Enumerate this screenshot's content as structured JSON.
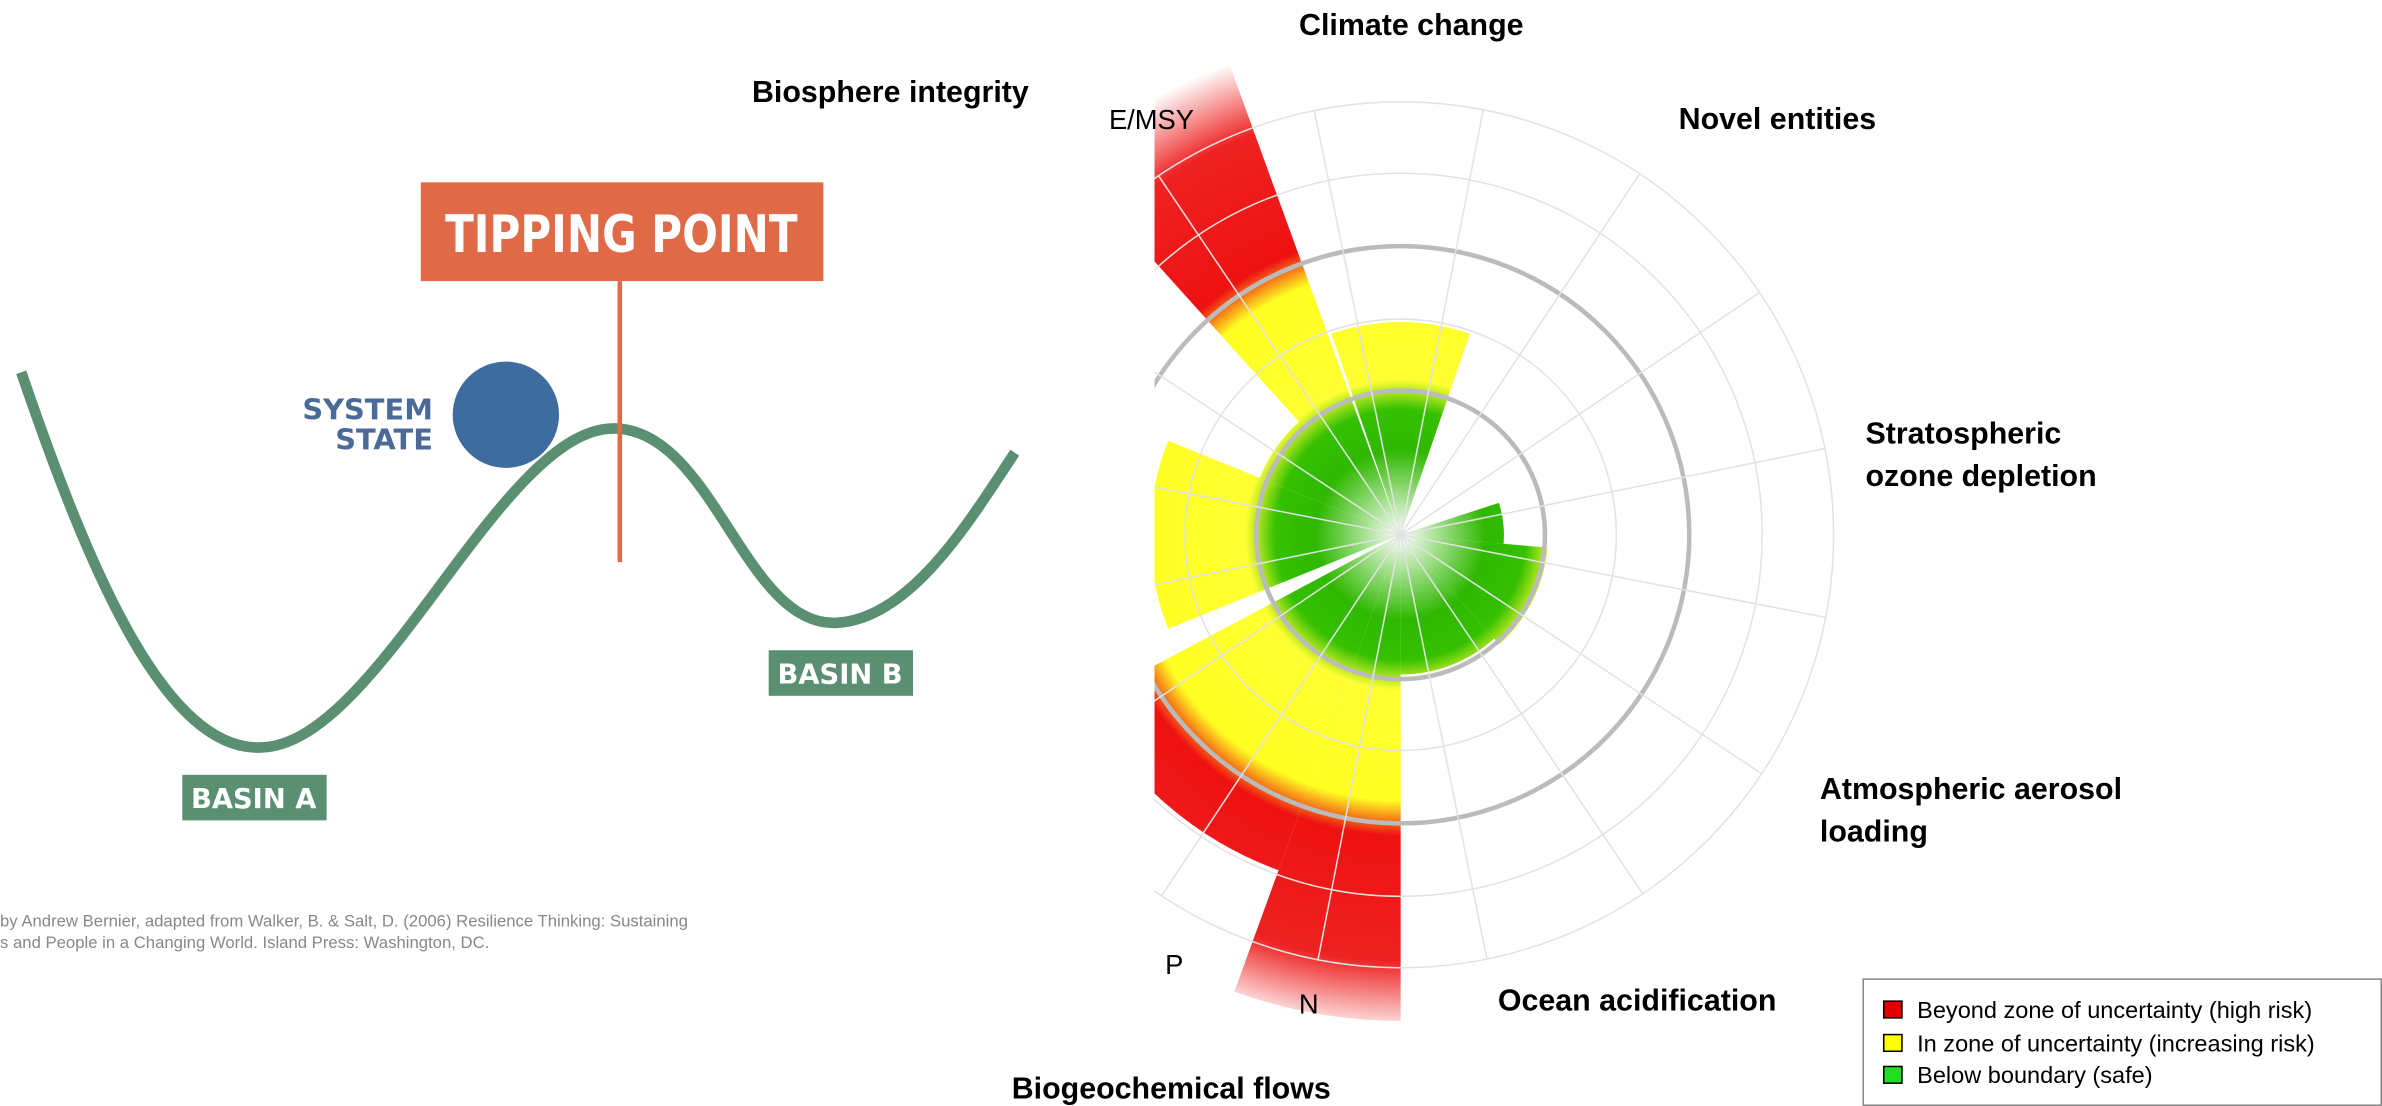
{
  "diagram": {
    "title": "TIPPING POINT",
    "system_state": [
      "SYSTEM",
      "STATE"
    ],
    "basin_a": "BASIN A",
    "basin_b": "BASIN B",
    "caption": [
      "by Andrew Bernier, adapted from Walker, B. & Salt, D. (2006) Resilience Thinking: Sustaining",
      "s and People in a Changing World. Island Press: Washington, DC."
    ]
  },
  "planetary_boundaries": {
    "labels": {
      "climate_change": "Climate change",
      "biosphere_integrity": "Biosphere integrity",
      "novel_entities": "Novel entities",
      "ozone": [
        "Stratospheric",
        "ozone depletion"
      ],
      "aerosol": [
        "Atmospheric aerosol",
        "loading"
      ],
      "ocean_acidification": "Ocean acidification",
      "biogeochemical_flows": "Biogeochemical flows"
    },
    "sub_labels": {
      "e_msy": "E/MSY",
      "p": "P",
      "n": "N"
    },
    "legend": [
      "Beyond zone of uncertainty (high risk)",
      "In zone of uncertainty (increasing risk)",
      "Below boundary (safe)"
    ]
  }
}
